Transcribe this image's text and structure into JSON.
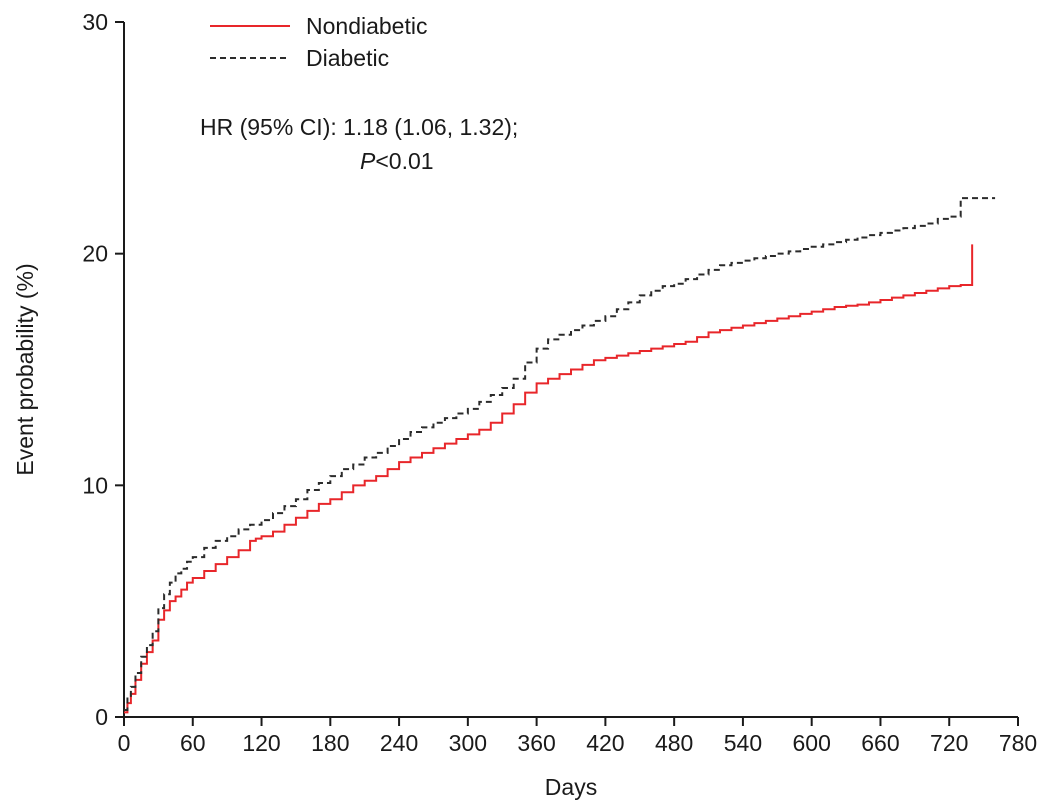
{
  "chart_data": {
    "type": "line",
    "step": true,
    "xlabel": "Days",
    "ylabel": "Event probability (%)",
    "xlim": [
      0,
      780
    ],
    "ylim": [
      0,
      30
    ],
    "x_ticks": [
      0,
      60,
      120,
      180,
      240,
      300,
      360,
      420,
      480,
      540,
      600,
      660,
      720,
      780
    ],
    "y_ticks": [
      0,
      10,
      20,
      30
    ],
    "grid": false,
    "legend_position": "top-left",
    "annotation": {
      "line1": "HR (95% CI): 1.18 (1.06, 1.32);",
      "p_symbol": "P",
      "p_rest": "<0.01"
    },
    "series": [
      {
        "name": "Nondiabetic",
        "color": "#e8262a",
        "style": "solid",
        "x": [
          0,
          3,
          6,
          10,
          15,
          20,
          25,
          30,
          35,
          40,
          45,
          50,
          55,
          60,
          70,
          80,
          90,
          100,
          110,
          115,
          120,
          130,
          140,
          150,
          160,
          170,
          180,
          190,
          200,
          210,
          220,
          230,
          240,
          250,
          260,
          270,
          280,
          290,
          300,
          310,
          320,
          330,
          340,
          350,
          360,
          370,
          380,
          390,
          400,
          410,
          420,
          430,
          440,
          450,
          460,
          470,
          480,
          490,
          500,
          510,
          520,
          530,
          540,
          550,
          560,
          570,
          580,
          590,
          600,
          610,
          620,
          630,
          640,
          650,
          660,
          670,
          680,
          690,
          700,
          710,
          720,
          730,
          740,
          740
        ],
        "y": [
          0.2,
          0.6,
          1.0,
          1.6,
          2.3,
          2.8,
          3.3,
          4.2,
          4.6,
          5.0,
          5.2,
          5.5,
          5.8,
          6.0,
          6.3,
          6.6,
          6.9,
          7.2,
          7.6,
          7.7,
          7.8,
          8.0,
          8.3,
          8.6,
          8.9,
          9.2,
          9.4,
          9.7,
          10.0,
          10.2,
          10.4,
          10.7,
          11.0,
          11.2,
          11.4,
          11.6,
          11.8,
          12.0,
          12.2,
          12.4,
          12.7,
          13.1,
          13.5,
          14.0,
          14.4,
          14.6,
          14.8,
          15.0,
          15.2,
          15.4,
          15.5,
          15.6,
          15.7,
          15.8,
          15.9,
          16.0,
          16.1,
          16.2,
          16.4,
          16.6,
          16.7,
          16.8,
          16.9,
          17.0,
          17.1,
          17.2,
          17.3,
          17.4,
          17.5,
          17.6,
          17.7,
          17.75,
          17.8,
          17.9,
          18.0,
          18.1,
          18.2,
          18.3,
          18.4,
          18.5,
          18.6,
          18.65,
          18.7,
          20.4
        ]
      },
      {
        "name": "Diabetic",
        "color": "#2b2b2b",
        "style": "dashed",
        "x": [
          0,
          3,
          6,
          10,
          15,
          20,
          25,
          30,
          35,
          40,
          45,
          50,
          55,
          60,
          70,
          80,
          90,
          100,
          110,
          120,
          130,
          140,
          150,
          160,
          170,
          180,
          190,
          200,
          210,
          220,
          230,
          240,
          250,
          260,
          270,
          280,
          290,
          300,
          310,
          320,
          330,
          340,
          350,
          360,
          370,
          380,
          390,
          400,
          410,
          420,
          430,
          440,
          450,
          460,
          470,
          480,
          490,
          500,
          510,
          520,
          530,
          540,
          550,
          560,
          570,
          580,
          590,
          600,
          610,
          620,
          630,
          640,
          650,
          660,
          670,
          680,
          690,
          700,
          710,
          720,
          730,
          740,
          760
        ],
        "y": [
          0.3,
          0.8,
          1.3,
          1.9,
          2.6,
          3.1,
          3.7,
          4.7,
          5.3,
          5.8,
          6.2,
          6.4,
          6.7,
          6.9,
          7.3,
          7.6,
          7.8,
          8.1,
          8.3,
          8.5,
          8.8,
          9.1,
          9.4,
          9.8,
          10.1,
          10.4,
          10.7,
          10.9,
          11.2,
          11.4,
          11.7,
          12.0,
          12.3,
          12.5,
          12.7,
          12.9,
          13.1,
          13.3,
          13.6,
          13.9,
          14.2,
          14.6,
          15.3,
          15.9,
          16.3,
          16.5,
          16.7,
          16.9,
          17.1,
          17.3,
          17.6,
          17.9,
          18.2,
          18.4,
          18.6,
          18.7,
          18.9,
          19.1,
          19.3,
          19.5,
          19.6,
          19.7,
          19.8,
          19.9,
          20.0,
          20.1,
          20.2,
          20.3,
          20.4,
          20.5,
          20.6,
          20.7,
          20.8,
          20.9,
          21.0,
          21.1,
          21.2,
          21.3,
          21.5,
          21.6,
          22.4,
          22.4,
          22.4
        ]
      }
    ]
  }
}
